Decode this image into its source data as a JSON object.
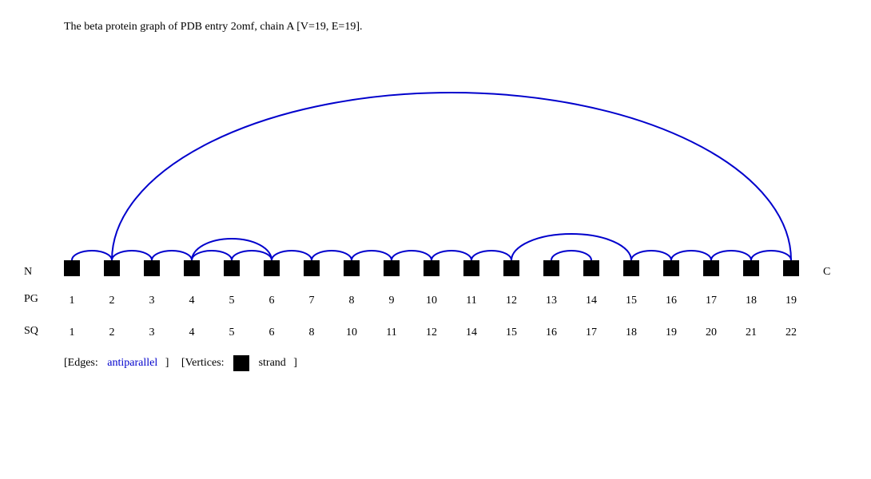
{
  "title": "The beta protein graph of PDB entry 2omf, chain A [V=19, E=19].",
  "end_labels": {
    "n": "N",
    "c": "C"
  },
  "row_labels": {
    "pg": "PG",
    "sq": "SQ"
  },
  "colors": {
    "edge": "#0000cc",
    "vertex": "#000000"
  },
  "vertices": [
    {
      "pg": "1",
      "sq": "1"
    },
    {
      "pg": "2",
      "sq": "2"
    },
    {
      "pg": "3",
      "sq": "3"
    },
    {
      "pg": "4",
      "sq": "4"
    },
    {
      "pg": "5",
      "sq": "5"
    },
    {
      "pg": "6",
      "sq": "6"
    },
    {
      "pg": "7",
      "sq": "8"
    },
    {
      "pg": "8",
      "sq": "10"
    },
    {
      "pg": "9",
      "sq": "11"
    },
    {
      "pg": "10",
      "sq": "12"
    },
    {
      "pg": "11",
      "sq": "14"
    },
    {
      "pg": "12",
      "sq": "15"
    },
    {
      "pg": "13",
      "sq": "16"
    },
    {
      "pg": "14",
      "sq": "17"
    },
    {
      "pg": "15",
      "sq": "18"
    },
    {
      "pg": "16",
      "sq": "19"
    },
    {
      "pg": "17",
      "sq": "20"
    },
    {
      "pg": "18",
      "sq": "21"
    },
    {
      "pg": "19",
      "sq": "22"
    }
  ],
  "edges": [
    [
      1,
      2
    ],
    [
      2,
      3
    ],
    [
      3,
      4
    ],
    [
      4,
      5
    ],
    [
      5,
      6
    ],
    [
      4,
      6
    ],
    [
      6,
      7
    ],
    [
      7,
      8
    ],
    [
      8,
      9
    ],
    [
      9,
      10
    ],
    [
      10,
      11
    ],
    [
      11,
      12
    ],
    [
      12,
      15
    ],
    [
      13,
      14
    ],
    [
      15,
      16
    ],
    [
      16,
      17
    ],
    [
      17,
      18
    ],
    [
      18,
      19
    ],
    [
      2,
      19
    ]
  ],
  "legend": {
    "edges_open": "[Edges:",
    "edge_type": "antiparallel",
    "edges_close": "]",
    "vertices_open": "[Vertices:",
    "vertex_type": "strand",
    "vertices_close": "]"
  }
}
